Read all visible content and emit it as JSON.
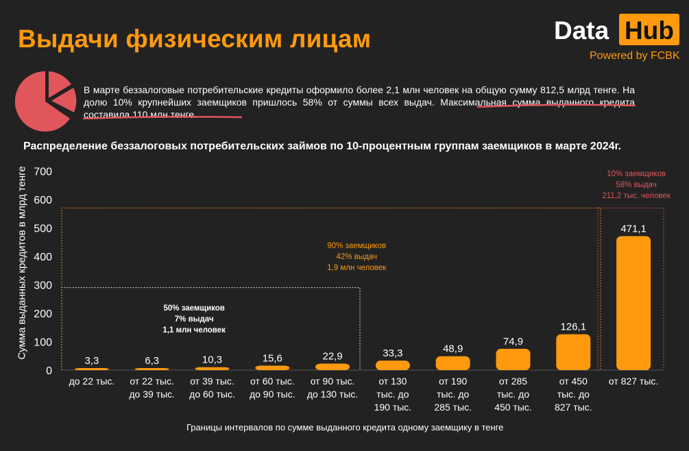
{
  "header": {
    "title": "Выдачи физическим лицам",
    "logo_data": "Data",
    "logo_hub": "Hub",
    "powered_by": "Powered by FCBK"
  },
  "description": {
    "text": "В марте беззалоговые потребительские кредиты оформило более 2,1 млн человек на общую сумму 812,5 млрд тенге. На долю 10% крупнейших заемщиков пришлось 58% от суммы всех выдач. ",
    "highlight": "Максимальная сумма выданного кредита составила 110 млн тенге."
  },
  "colors": {
    "accent": "#ff9a0e",
    "pie": "#e0565b",
    "annotation_red": "#e0565b",
    "background": "#222222"
  },
  "chart_data": {
    "type": "bar",
    "title": "Распределение беззалоговых потребительских займов по 10-процентным группам заемщиков в марте 2024г.",
    "ylabel": "Сумма выданных кредитов в млрд тенге",
    "xlabel": "Границы интервалов по сумме выданного кредита одному заемщику  в тенге",
    "ylim": [
      0,
      700
    ],
    "yticks": [
      0,
      100,
      200,
      300,
      400,
      500,
      600,
      700
    ],
    "categories": [
      [
        "до 22 тыс."
      ],
      [
        "от 22 тыс.",
        "до 39 тыс."
      ],
      [
        "от 39 тыс.",
        "до 60 тыс."
      ],
      [
        "от 60 тыс.",
        "до 90 тыс."
      ],
      [
        "от 90 тыс.",
        "до 130 тыс."
      ],
      [
        "от 130",
        "тыс. до",
        "190 тыс."
      ],
      [
        "от 190",
        "тыс. до",
        "285 тыс."
      ],
      [
        "от 285",
        "тыс. до",
        "450 тыс."
      ],
      [
        "от 450",
        "тыс. до",
        "827 тыс."
      ],
      [
        "от 827 тыс."
      ]
    ],
    "values": [
      3.3,
      6.3,
      10.3,
      15.6,
      22.9,
      33.3,
      48.9,
      74.9,
      126.1,
      471.1
    ],
    "value_labels": [
      "3,3",
      "6,3",
      "10,3",
      "15,6",
      "22,9",
      "33,3",
      "48,9",
      "74,9",
      "126,1",
      "471,1"
    ],
    "annotations": [
      {
        "lines": [
          "50% заемщиков",
          "7% выдач",
          "1,1 млн человек"
        ],
        "color": "#ffffff",
        "from": 0,
        "to": 4,
        "level": 290
      },
      {
        "lines": [
          "90% заемщиков",
          "42% выдач",
          "1,9 млн человек"
        ],
        "color": "#ff9a0e",
        "from": 0,
        "to": 8,
        "level": 570
      },
      {
        "lines": [
          "10% заемщиков",
          "58% выдач",
          "211,2 тыс. человек"
        ],
        "color": "#e0565b",
        "from": 9,
        "to": 9,
        "level": 570
      }
    ],
    "grid": false,
    "legend": "none"
  }
}
